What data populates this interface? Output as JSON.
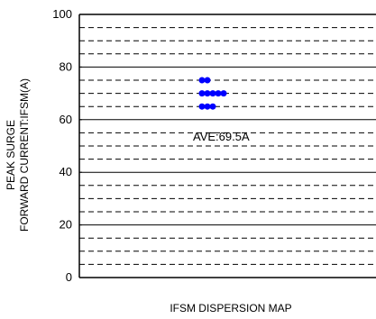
{
  "chart_data": {
    "type": "scatter",
    "title": "",
    "xlabel": "IFSM DISPERSION MAP",
    "ylabel": [
      "PEAK SURGE",
      "FORWARD CURRENT:IFSM(A)"
    ],
    "ylim": [
      0,
      100
    ],
    "yticks": [
      0,
      20,
      40,
      60,
      80,
      100
    ],
    "grid": {
      "major_solid_every": 20,
      "minor_dashed_every": 5
    },
    "points": [
      {
        "x": -2,
        "y": 75
      },
      {
        "x": -1,
        "y": 75
      },
      {
        "x": -2,
        "y": 70
      },
      {
        "x": -1,
        "y": 70
      },
      {
        "x": 0,
        "y": 70
      },
      {
        "x": 1,
        "y": 70
      },
      {
        "x": 2,
        "y": 70
      },
      {
        "x": -2,
        "y": 65
      },
      {
        "x": -1,
        "y": 65
      },
      {
        "x": 0,
        "y": 65
      }
    ],
    "annotation": "AVE:69.5A",
    "point_color": "#0000ff"
  }
}
